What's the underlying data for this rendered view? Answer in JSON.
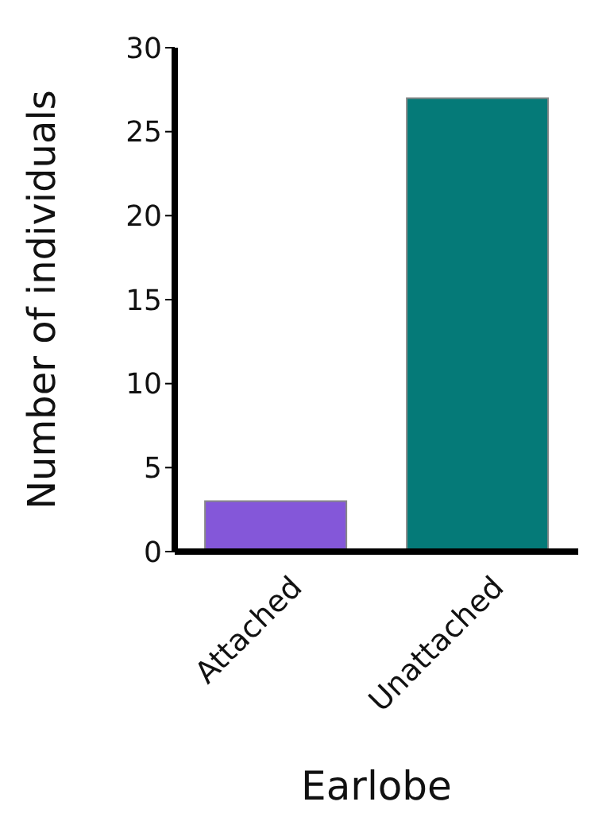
{
  "chart_data": {
    "type": "bar",
    "xlabel": "Earlobe",
    "ylabel": "Number of individuals",
    "categories": [
      "Attached",
      "Unattached"
    ],
    "values": [
      3,
      27
    ],
    "colors": [
      "#8457d9",
      "#057a78"
    ],
    "ylim": [
      0,
      30
    ],
    "yticks": [
      0,
      5,
      10,
      15,
      20,
      25,
      30
    ],
    "grid": false,
    "legend": false
  }
}
